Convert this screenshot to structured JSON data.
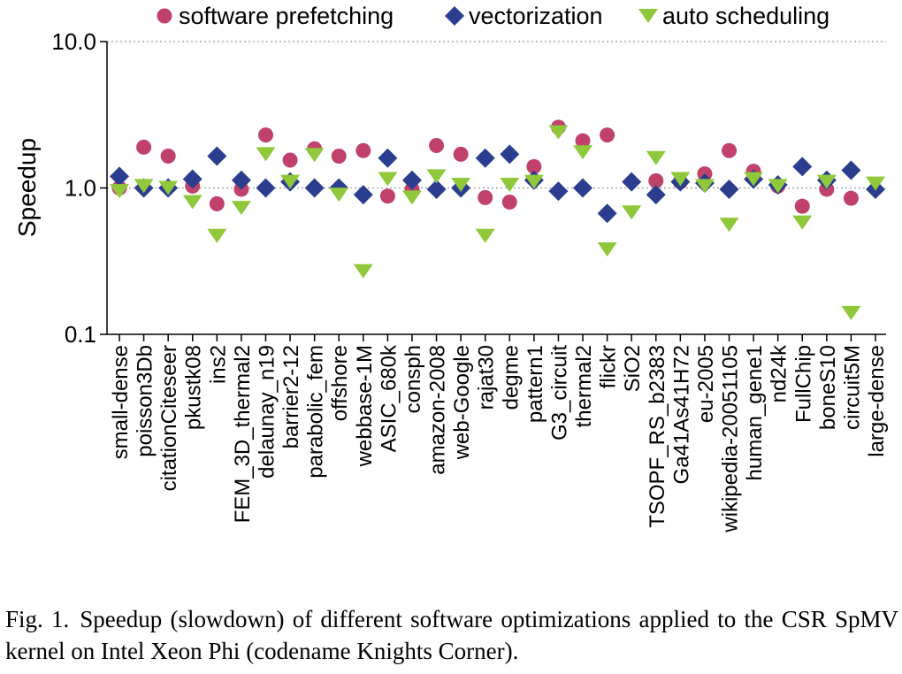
{
  "chart_data": {
    "type": "scatter",
    "ylabel": "Speedup",
    "y_scale": "log",
    "ylim": [
      0.1,
      10.0
    ],
    "y_ticks": [
      "0.1",
      "1.0",
      "10.0"
    ],
    "grid": "horizontal dotted at 1.0 and 10.0",
    "legend_position": "top",
    "categories": [
      "small-dense",
      "poisson3Db",
      "citationCiteseer",
      "pkustk08",
      "ins2",
      "FEM_3D_thermal2",
      "delaunay_n19",
      "barrier2-12",
      "parabolic_fem",
      "offshore",
      "webbase-1M",
      "ASIC_680k",
      "consph",
      "amazon-2008",
      "web-Google",
      "rajat30",
      "degme",
      "pattern1",
      "G3_circuit",
      "thermal2",
      "flickr",
      "SiO2",
      "TSOPF_RS_b2383",
      "Ga41As41H72",
      "eu-2005",
      "wikipedia-20051105",
      "human_gene1",
      "nd24k",
      "FullChip",
      "boneS10",
      "circuit5M",
      "large-dense"
    ],
    "series": [
      {
        "name": "software prefetching",
        "marker": "circle",
        "color": "#c0426b",
        "values": [
          1.0,
          1.9,
          1.65,
          1.03,
          0.78,
          0.98,
          2.3,
          1.55,
          1.85,
          1.65,
          1.8,
          0.88,
          0.98,
          1.95,
          1.7,
          0.86,
          0.8,
          1.4,
          2.6,
          2.1,
          2.3,
          null,
          1.12,
          1.1,
          1.25,
          1.8,
          1.3,
          1.03,
          0.75,
          0.98,
          0.85,
          null
        ]
      },
      {
        "name": "vectorization",
        "marker": "diamond",
        "color": "#2a3d8f",
        "values": [
          1.2,
          1.0,
          1.0,
          1.15,
          1.65,
          1.13,
          1.0,
          1.1,
          1.0,
          1.0,
          0.9,
          1.6,
          1.13,
          0.98,
          1.0,
          1.6,
          1.7,
          1.13,
          0.95,
          1.0,
          0.67,
          1.1,
          0.9,
          1.1,
          1.08,
          0.98,
          1.15,
          1.05,
          1.4,
          1.13,
          1.32,
          0.98
        ]
      },
      {
        "name": "auto scheduling",
        "marker": "triangle-down",
        "color": "#8fc83a",
        "values": [
          0.95,
          1.03,
          1.0,
          0.8,
          0.47,
          0.73,
          1.7,
          1.1,
          1.68,
          0.9,
          0.27,
          1.15,
          0.86,
          1.2,
          1.05,
          0.47,
          1.05,
          1.1,
          2.4,
          1.75,
          0.38,
          0.68,
          1.6,
          1.15,
          1.03,
          0.56,
          1.15,
          1.03,
          0.58,
          1.1,
          0.14,
          1.07
        ]
      }
    ]
  },
  "caption": {
    "figure_label": "Fig. 1.",
    "text": "Speedup (slowdown) of different software optimizations applied to the CSR SpMV kernel on Intel Xeon Phi (codename Knights Corner)."
  }
}
